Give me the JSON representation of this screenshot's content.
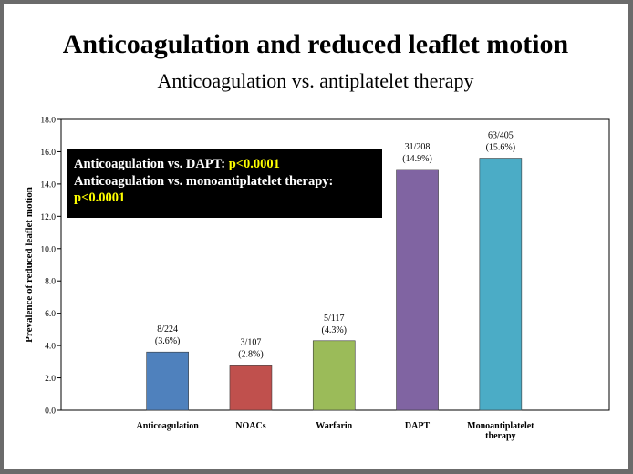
{
  "slide": {
    "title": "Anticoagulation and reduced leaflet motion",
    "subtitle": "Anticoagulation vs. antiplatelet therapy"
  },
  "callout": {
    "line1_label": "Anticoagulation vs. DAPT: ",
    "line1_p": "p<0.0001",
    "line2_label": "Anticoagulation vs. monoantiplatelet therapy: ",
    "line2_p": "p<0.0001"
  },
  "chart_data": {
    "type": "bar",
    "ylabel": "Prevalence of reduced leaflet motion",
    "xlabel": "",
    "ylim": [
      0,
      18
    ],
    "yticks": [
      "0.0",
      "2.0",
      "4.0",
      "6.0",
      "8.0",
      "10.0",
      "12.0",
      "14.0",
      "16.0",
      "18.0"
    ],
    "grid": false,
    "bars": [
      {
        "category": [
          "Anticoagulation"
        ],
        "value": 3.6,
        "count": "8/224",
        "pct": "(3.6%)",
        "color": "#4f81bd"
      },
      {
        "category": [
          "NOACs"
        ],
        "value": 2.8,
        "count": "3/107",
        "pct": "(2.8%)",
        "color": "#c0504d"
      },
      {
        "category": [
          "Warfarin"
        ],
        "value": 4.3,
        "count": "5/117",
        "pct": "(4.3%)",
        "color": "#9bbb59"
      },
      {
        "category": [
          "DAPT"
        ],
        "value": 14.9,
        "count": "31/208",
        "pct": "(14.9%)",
        "color": "#8064a2"
      },
      {
        "category": [
          "Monoantiplatelet",
          "therapy"
        ],
        "value": 15.6,
        "count": "63/405",
        "pct": "(15.6%)",
        "color": "#4bacc6"
      }
    ]
  }
}
